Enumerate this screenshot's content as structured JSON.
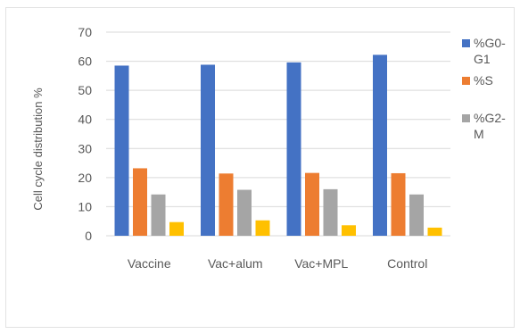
{
  "chart_data": {
    "type": "bar",
    "ylabel": "Cell cycle distribution %",
    "xlabel": "",
    "ylim": [
      0,
      70
    ],
    "yticks": [
      0,
      10,
      20,
      30,
      40,
      50,
      60,
      70
    ],
    "grid": true,
    "legend_position": "right",
    "categories": [
      "Vaccine",
      "Vac+alum",
      "Vac+MPL",
      "Control"
    ],
    "series": [
      {
        "name": "%G0-G1",
        "legend_lines": [
          "%G0-",
          "G1"
        ],
        "color": "#4472c4",
        "values": [
          58.5,
          58.8,
          59.6,
          62.2
        ]
      },
      {
        "name": "%S",
        "legend_lines": [
          "%S"
        ],
        "color": "#ed7d31",
        "values": [
          23.2,
          21.4,
          21.6,
          21.5
        ]
      },
      {
        "name": "%G2-M",
        "legend_lines": [
          "%G2-",
          "M"
        ],
        "color": "#a5a5a5",
        "values": [
          14.2,
          15.8,
          16.0,
          14.2
        ]
      },
      {
        "name": "",
        "legend_lines": [],
        "color": "#ffc000",
        "values": [
          4.7,
          5.3,
          3.6,
          2.8
        ]
      }
    ]
  }
}
